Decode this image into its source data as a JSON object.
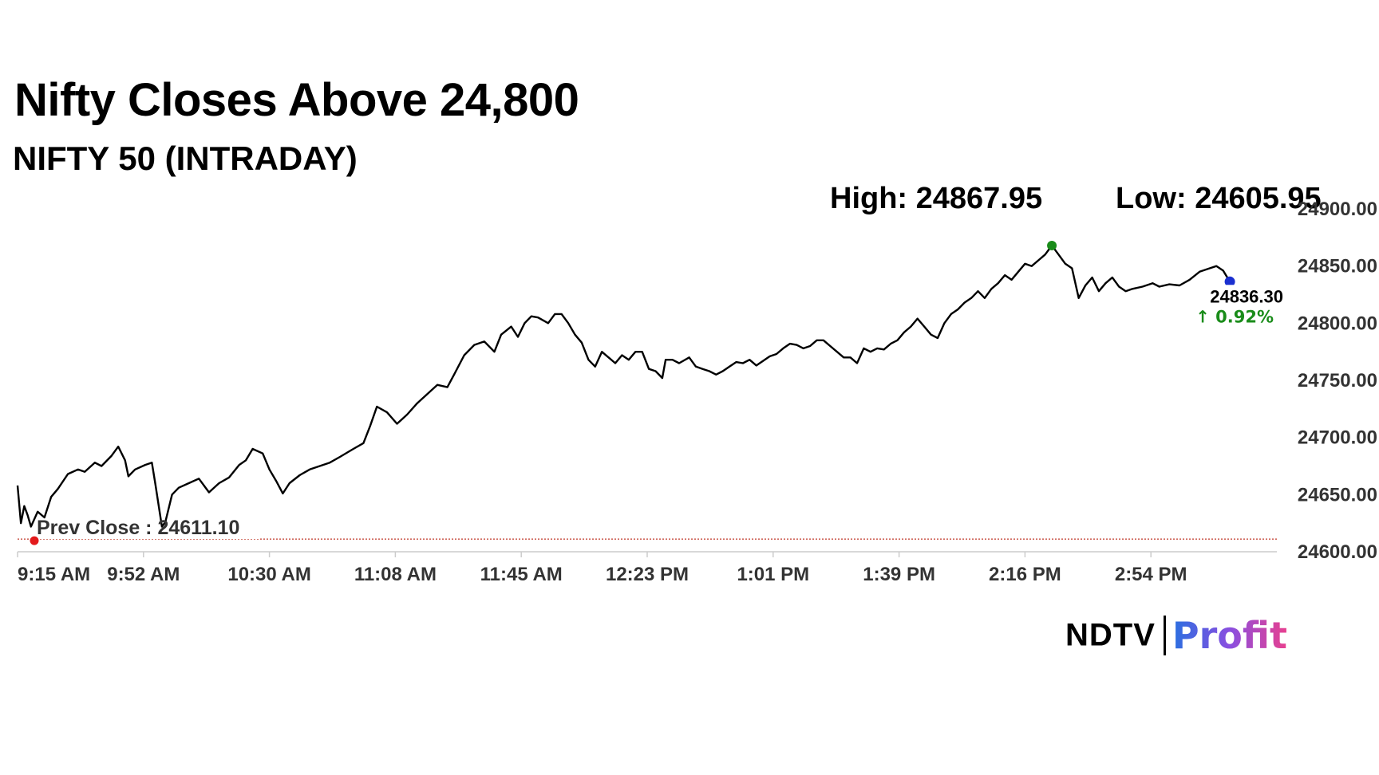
{
  "header": {
    "title": "Nifty Closes Above 24,800",
    "subtitle": "NIFTY 50 (INTRADAY)",
    "high_label": "High: 24867.95",
    "low_label": "Low: 24605.95"
  },
  "logo": {
    "brand": "NDTV",
    "product": "Profit"
  },
  "chart_data": {
    "type": "line",
    "title": "NIFTY 50 (INTRADAY)",
    "xlabel": "",
    "ylabel": "",
    "ylim": [
      24600,
      24900
    ],
    "yticks": [
      24600,
      24650,
      24700,
      24750,
      24800,
      24850,
      24900
    ],
    "ytick_labels": [
      "24600.00",
      "24650.00",
      "24700.00",
      "24750.00",
      "24800.00",
      "24850.00",
      "24900.00"
    ],
    "xlim_minutes": [
      0,
      375
    ],
    "xtick_labels": [
      "9:15 AM",
      "9:52 AM",
      "10:30 AM",
      "11:08 AM",
      "11:45 AM",
      "12:23 PM",
      "1:01 PM",
      "1:39 PM",
      "2:16 PM",
      "2:54 PM"
    ],
    "grid": false,
    "prev_close": 24611.1,
    "prev_close_label": "Prev Close : 24611.10",
    "high": 24867.95,
    "low": 24605.95,
    "last": 24836.3,
    "last_label": "24836.30",
    "change_label": "↑ 0.92%",
    "colors": {
      "line": "#000000",
      "high_marker": "#1a8c1a",
      "last_marker": "#1a2fd0",
      "prev_close": "#e31a1c",
      "change": "#1a8c1a"
    },
    "series": [
      {
        "values": [
          [
            0,
            24658
          ],
          [
            1,
            24625
          ],
          [
            2,
            24640
          ],
          [
            3,
            24632
          ],
          [
            4,
            24622
          ],
          [
            6,
            24635
          ],
          [
            8,
            24630
          ],
          [
            10,
            24648
          ],
          [
            12,
            24655
          ],
          [
            15,
            24668
          ],
          [
            18,
            24672
          ],
          [
            20,
            24670
          ],
          [
            23,
            24678
          ],
          [
            25,
            24675
          ],
          [
            28,
            24684
          ],
          [
            30,
            24692
          ],
          [
            32,
            24680
          ],
          [
            33,
            24666
          ],
          [
            35,
            24672
          ],
          [
            38,
            24676
          ],
          [
            40,
            24678
          ],
          [
            41,
            24660
          ],
          [
            43,
            24622
          ],
          [
            44,
            24626
          ],
          [
            46,
            24650
          ],
          [
            48,
            24656
          ],
          [
            51,
            24660
          ],
          [
            54,
            24664
          ],
          [
            57,
            24652
          ],
          [
            60,
            24660
          ],
          [
            63,
            24665
          ],
          [
            66,
            24676
          ],
          [
            68,
            24680
          ],
          [
            70,
            24690
          ],
          [
            73,
            24686
          ],
          [
            75,
            24672
          ],
          [
            77,
            24662
          ],
          [
            79,
            24651
          ],
          [
            81,
            24660
          ],
          [
            84,
            24667
          ],
          [
            87,
            24672
          ],
          [
            90,
            24675
          ],
          [
            93,
            24678
          ],
          [
            96,
            24683
          ],
          [
            100,
            24690
          ],
          [
            103,
            24695
          ],
          [
            105,
            24710
          ],
          [
            107,
            24727
          ],
          [
            110,
            24722
          ],
          [
            113,
            24712
          ],
          [
            116,
            24720
          ],
          [
            119,
            24730
          ],
          [
            122,
            24738
          ],
          [
            125,
            24746
          ],
          [
            128,
            24744
          ],
          [
            130,
            24755
          ],
          [
            133,
            24772
          ],
          [
            136,
            24781
          ],
          [
            139,
            24784
          ],
          [
            142,
            24775
          ],
          [
            144,
            24790
          ],
          [
            147,
            24797
          ],
          [
            149,
            24788
          ],
          [
            151,
            24800
          ],
          [
            153,
            24806
          ],
          [
            155,
            24805
          ],
          [
            158,
            24800
          ],
          [
            160,
            24808
          ],
          [
            162,
            24808
          ],
          [
            164,
            24800
          ],
          [
            166,
            24790
          ],
          [
            168,
            24783
          ],
          [
            170,
            24768
          ],
          [
            172,
            24762
          ],
          [
            174,
            24775
          ],
          [
            176,
            24770
          ],
          [
            178,
            24765
          ],
          [
            180,
            24772
          ],
          [
            182,
            24768
          ],
          [
            184,
            24775
          ],
          [
            186,
            24775
          ],
          [
            188,
            24760
          ],
          [
            190,
            24758
          ],
          [
            192,
            24752
          ],
          [
            193,
            24768
          ],
          [
            195,
            24768
          ],
          [
            197,
            24765
          ],
          [
            200,
            24770
          ],
          [
            202,
            24762
          ],
          [
            204,
            24760
          ],
          [
            206,
            24758
          ],
          [
            208,
            24755
          ],
          [
            210,
            24758
          ],
          [
            212,
            24762
          ],
          [
            214,
            24766
          ],
          [
            216,
            24765
          ],
          [
            218,
            24768
          ],
          [
            220,
            24763
          ],
          [
            222,
            24767
          ],
          [
            224,
            24771
          ],
          [
            226,
            24773
          ],
          [
            228,
            24778
          ],
          [
            230,
            24782
          ],
          [
            232,
            24781
          ],
          [
            234,
            24778
          ],
          [
            236,
            24780
          ],
          [
            238,
            24785
          ],
          [
            240,
            24785
          ],
          [
            242,
            24780
          ],
          [
            244,
            24775
          ],
          [
            246,
            24770
          ],
          [
            248,
            24770
          ],
          [
            250,
            24765
          ],
          [
            252,
            24778
          ],
          [
            254,
            24775
          ],
          [
            256,
            24778
          ],
          [
            258,
            24777
          ],
          [
            260,
            24782
          ],
          [
            262,
            24785
          ],
          [
            264,
            24792
          ],
          [
            266,
            24797
          ],
          [
            268,
            24804
          ],
          [
            270,
            24797
          ],
          [
            272,
            24790
          ],
          [
            274,
            24787
          ],
          [
            276,
            24800
          ],
          [
            278,
            24808
          ],
          [
            280,
            24812
          ],
          [
            282,
            24818
          ],
          [
            284,
            24822
          ],
          [
            286,
            24828
          ],
          [
            288,
            24822
          ],
          [
            290,
            24830
          ],
          [
            292,
            24835
          ],
          [
            294,
            24842
          ],
          [
            296,
            24838
          ],
          [
            298,
            24845
          ],
          [
            300,
            24852
          ],
          [
            302,
            24850
          ],
          [
            304,
            24855
          ],
          [
            306,
            24860
          ],
          [
            308,
            24868
          ],
          [
            310,
            24860
          ],
          [
            312,
            24852
          ],
          [
            314,
            24848
          ],
          [
            316,
            24822
          ],
          [
            318,
            24833
          ],
          [
            320,
            24840
          ],
          [
            322,
            24828
          ],
          [
            324,
            24835
          ],
          [
            326,
            24840
          ],
          [
            328,
            24832
          ],
          [
            330,
            24828
          ],
          [
            332,
            24830
          ],
          [
            335,
            24832
          ],
          [
            338,
            24835
          ],
          [
            340,
            24832
          ],
          [
            343,
            24834
          ],
          [
            346,
            24833
          ],
          [
            349,
            24838
          ],
          [
            352,
            24845
          ],
          [
            355,
            24848
          ],
          [
            357,
            24850
          ],
          [
            359,
            24846
          ],
          [
            361,
            24836.3
          ]
        ]
      }
    ]
  }
}
